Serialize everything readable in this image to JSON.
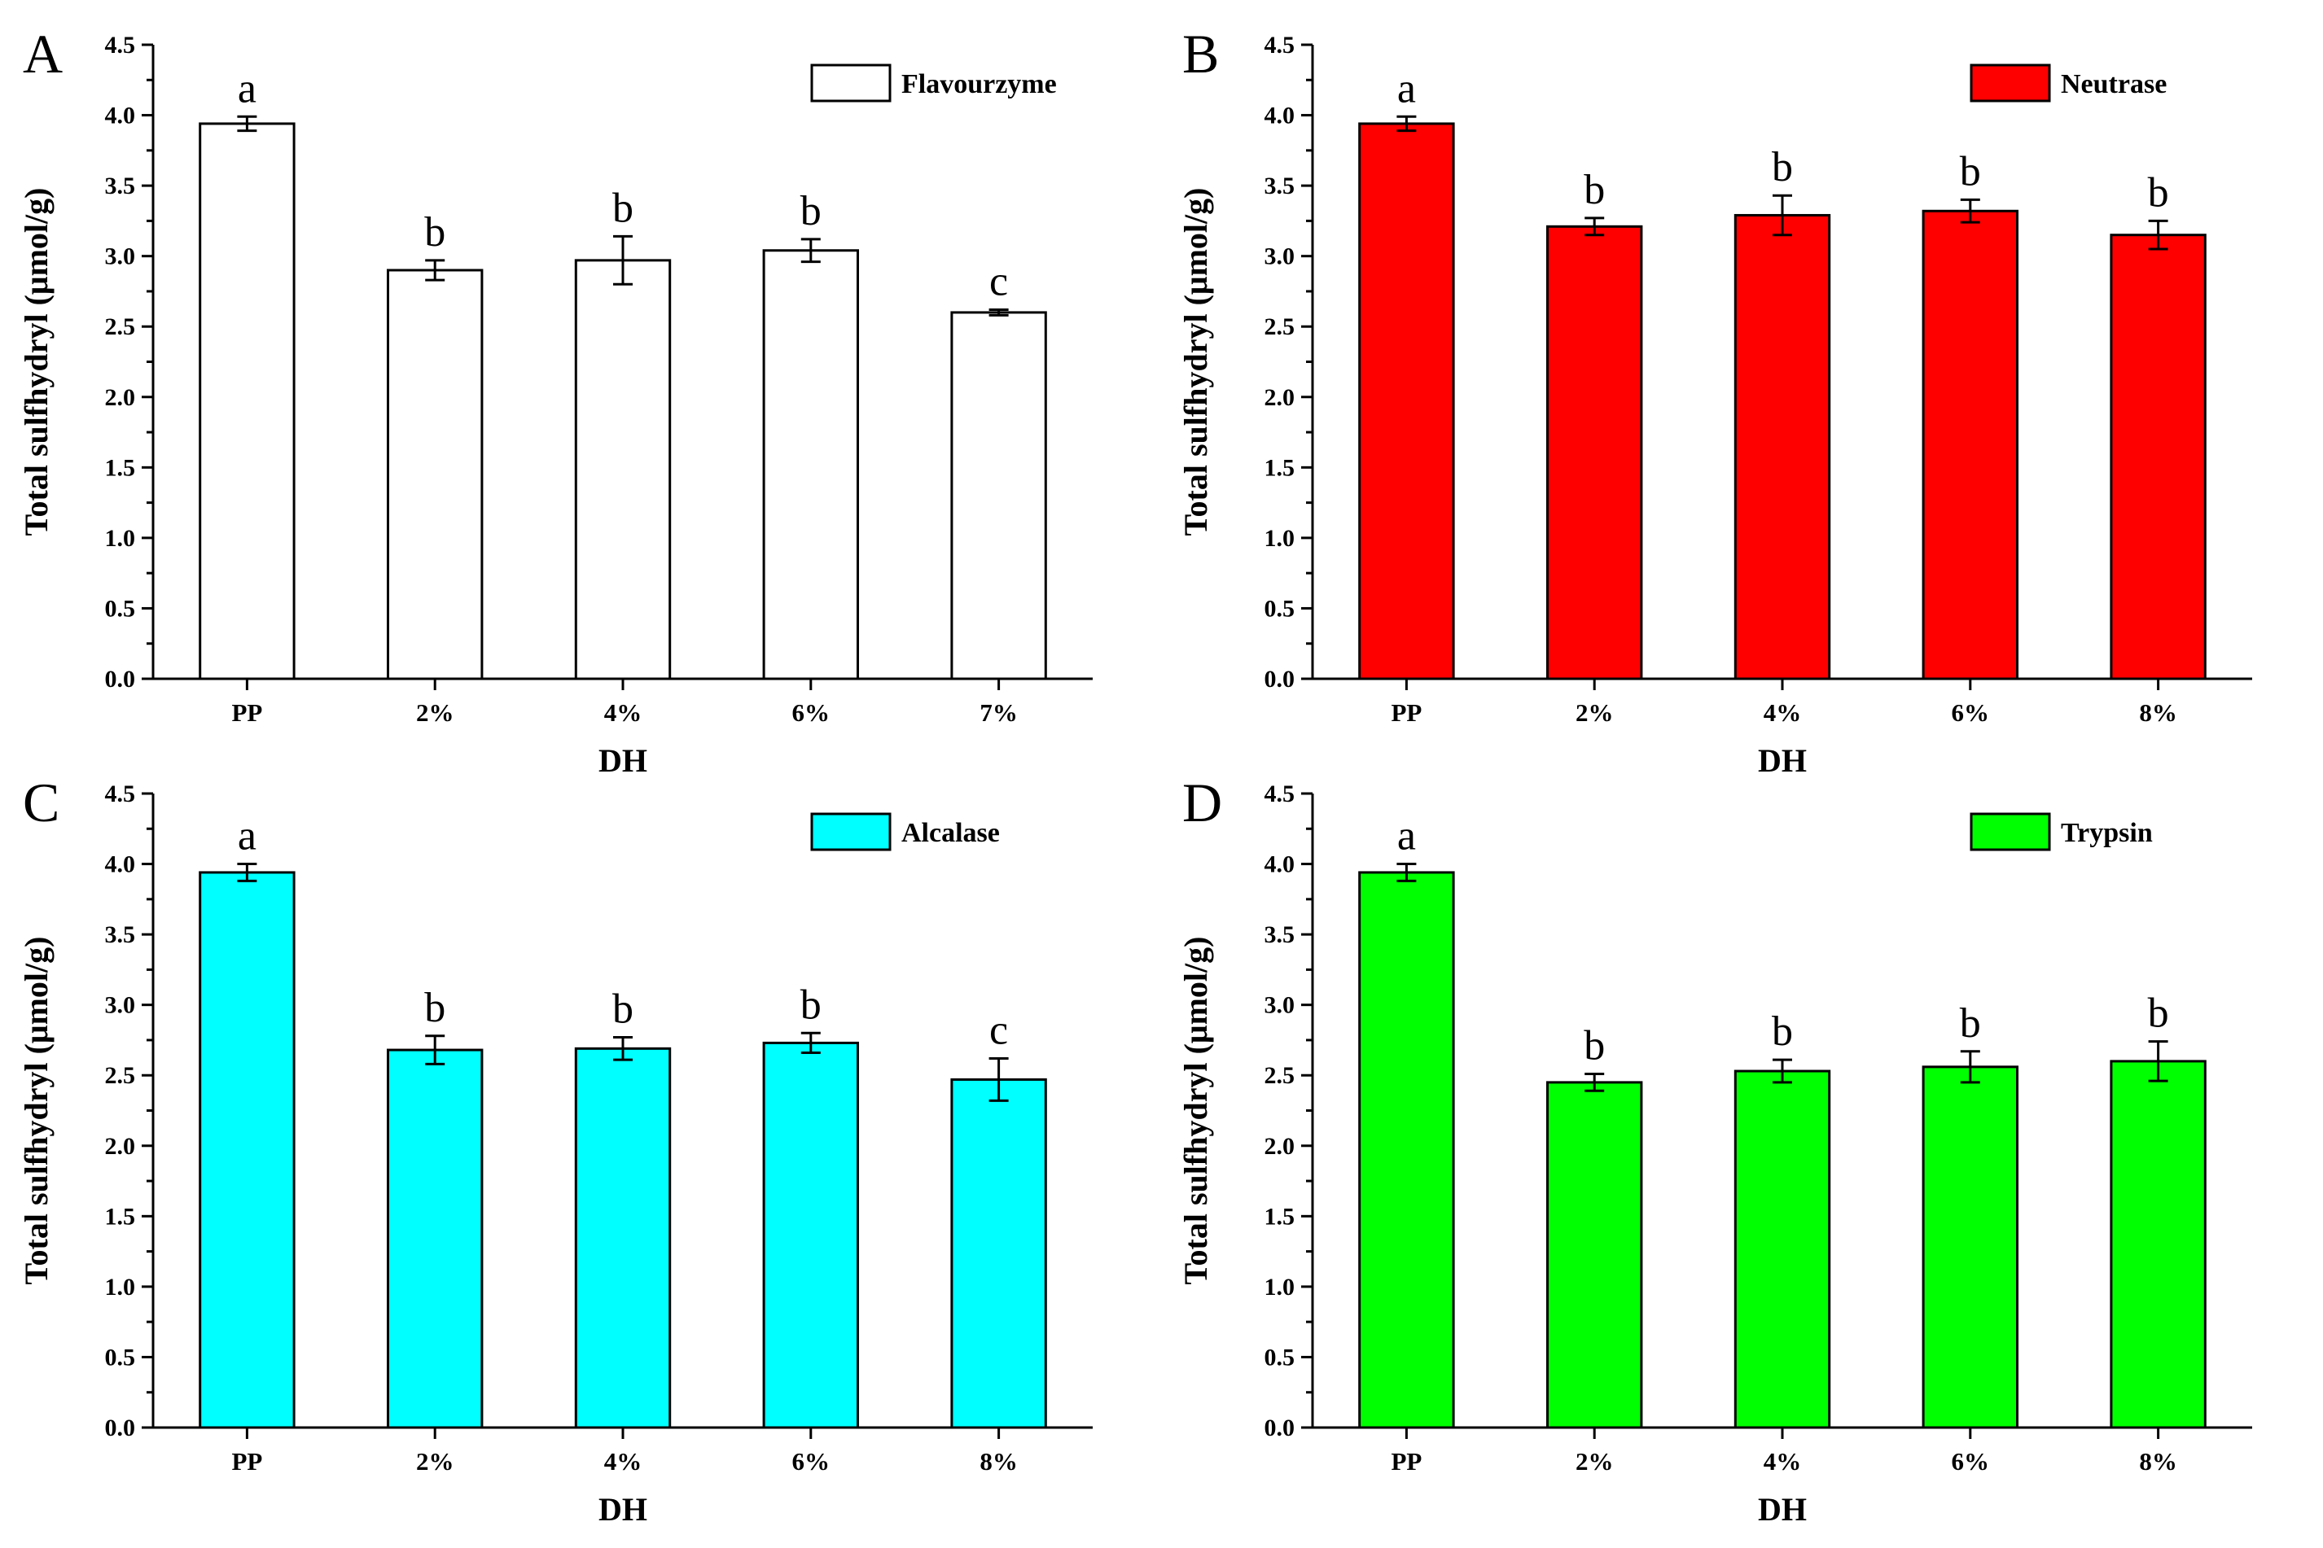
{
  "chart_data": [
    {
      "panel": "A",
      "type": "bar",
      "series_name": "Flavourzyme",
      "color": "#ffffff",
      "categories": [
        "PP",
        "2%",
        "4%",
        "6%",
        "7%"
      ],
      "values": [
        3.94,
        2.9,
        2.97,
        3.04,
        2.6
      ],
      "errors": [
        0.05,
        0.07,
        0.17,
        0.08,
        0.02
      ],
      "significance": [
        "a",
        "b",
        "b",
        "b",
        "c"
      ],
      "xlabel": "DH",
      "ylabel": "Total sulfhydryl (μmol/g)",
      "ylim": [
        0,
        4.5
      ],
      "yticks": [
        "0.0",
        "0.5",
        "1.0",
        "1.5",
        "2.0",
        "2.5",
        "3.0",
        "3.5",
        "4.0",
        "4.5"
      ],
      "legend_position": "top-right"
    },
    {
      "panel": "B",
      "type": "bar",
      "series_name": "Neutrase",
      "color": "#ff0000",
      "categories": [
        "PP",
        "2%",
        "4%",
        "6%",
        "8%"
      ],
      "values": [
        3.94,
        3.21,
        3.29,
        3.32,
        3.15
      ],
      "errors": [
        0.05,
        0.06,
        0.14,
        0.08,
        0.1
      ],
      "significance": [
        "a",
        "b",
        "b",
        "b",
        "b"
      ],
      "xlabel": "DH",
      "ylabel": "Total sulfhydryl (μmol/g)",
      "ylim": [
        0,
        4.5
      ],
      "yticks": [
        "0.0",
        "0.5",
        "1.0",
        "1.5",
        "2.0",
        "2.5",
        "3.0",
        "3.5",
        "4.0",
        "4.5"
      ],
      "legend_position": "top-right"
    },
    {
      "panel": "C",
      "type": "bar",
      "series_name": "Alcalase",
      "color": "#00ffff",
      "categories": [
        "PP",
        "2%",
        "4%",
        "6%",
        "8%"
      ],
      "values": [
        3.94,
        2.68,
        2.69,
        2.73,
        2.47
      ],
      "errors": [
        0.06,
        0.1,
        0.08,
        0.07,
        0.15
      ],
      "significance": [
        "a",
        "b",
        "b",
        "b",
        "c"
      ],
      "xlabel": "DH",
      "ylabel": "Total sulfhydryl (μmol/g)",
      "ylim": [
        0,
        4.5
      ],
      "yticks": [
        "0.0",
        "0.5",
        "1.0",
        "1.5",
        "2.0",
        "2.5",
        "3.0",
        "3.5",
        "4.0",
        "4.5"
      ],
      "legend_position": "top-right"
    },
    {
      "panel": "D",
      "type": "bar",
      "series_name": "Trypsin",
      "color": "#00ff00",
      "categories": [
        "PP",
        "2%",
        "4%",
        "6%",
        "8%"
      ],
      "values": [
        3.94,
        2.45,
        2.53,
        2.56,
        2.6
      ],
      "errors": [
        0.06,
        0.06,
        0.08,
        0.11,
        0.14
      ],
      "significance": [
        "a",
        "b",
        "b",
        "b",
        "b"
      ],
      "xlabel": "DH",
      "ylabel": "Total sulfhydryl (μmol/g)",
      "ylim": [
        0,
        4.5
      ],
      "yticks": [
        "0.0",
        "0.5",
        "1.0",
        "1.5",
        "2.0",
        "2.5",
        "3.0",
        "3.5",
        "4.0",
        "4.5"
      ],
      "legend_position": "top-right"
    }
  ]
}
